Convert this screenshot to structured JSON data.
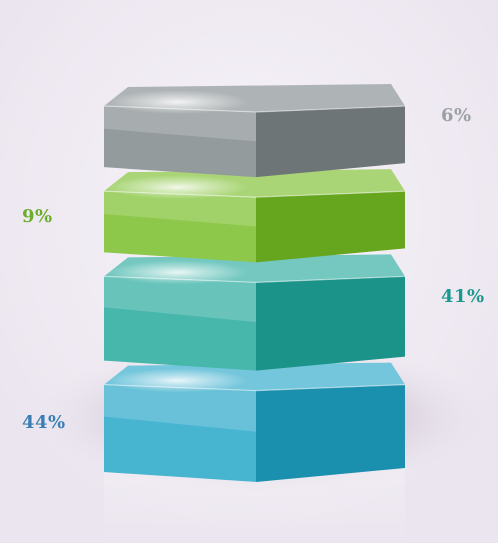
{
  "chart_data": {
    "type": "stacked-3d-pyramid",
    "series": [
      {
        "label": "44%",
        "value": 44,
        "color": "#1ea3c6",
        "label_color": "#3a7eb4",
        "label_side": "left"
      },
      {
        "label": "41%",
        "value": 41,
        "color": "#1fa79a",
        "label_color": "#1a9a8c",
        "label_side": "right"
      },
      {
        "label": "9%",
        "value": 9,
        "color": "#74bc22",
        "label_color": "#6cae2a",
        "label_side": "left"
      },
      {
        "label": "6%",
        "value": 6,
        "color": "#7d8587",
        "label_color": "#9aa1a4",
        "label_side": "right"
      }
    ]
  }
}
